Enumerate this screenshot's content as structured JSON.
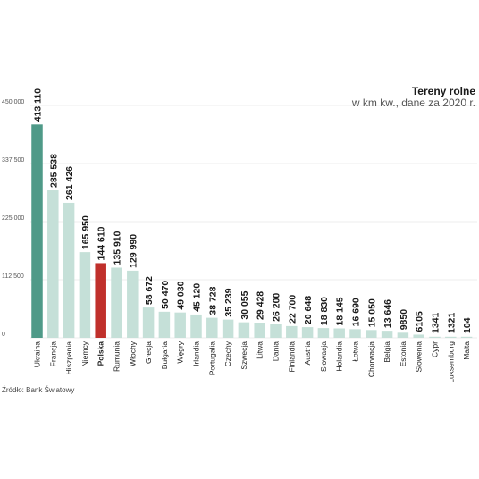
{
  "chart_data": {
    "type": "bar",
    "title": "Tereny rolne",
    "subtitle": "w km kw., dane za 2020 r.",
    "source": "Źródło: Bank Światowy",
    "ylim": [
      0,
      450000
    ],
    "yticks": [
      "450 000",
      "337 500",
      "225 000",
      "112 500",
      "0"
    ],
    "ytick_values": [
      450000,
      337500,
      225000,
      112500,
      0
    ],
    "grid": true,
    "categories": [
      "Ukraina",
      "Francja",
      "Hiszpania",
      "Niemcy",
      "Polska",
      "Rumunia",
      "Włochy",
      "Grecja",
      "Bułgaria",
      "Węgry",
      "Irlandia",
      "Portugalia",
      "Czechy",
      "Szwecja",
      "Litwa",
      "Dania",
      "Finlandia",
      "Austria",
      "Słowacja",
      "Holandia",
      "Łotwa",
      "Chorwacja",
      "Belgia",
      "Estonia",
      "Słowenia",
      "Cypr",
      "Luksemburg",
      "Malta"
    ],
    "values": [
      413110,
      285538,
      261426,
      165950,
      144610,
      135910,
      129990,
      58672,
      50470,
      49030,
      45120,
      38728,
      35239,
      30055,
      29428,
      26200,
      22700,
      20648,
      18830,
      18145,
      16690,
      15050,
      13646,
      9850,
      6105,
      1341,
      1321,
      104
    ],
    "value_labels": [
      "413 110",
      "285 538",
      "261 426",
      "165 950",
      "144 610",
      "135 910",
      "129 990",
      "58 672",
      "50 470",
      "49 030",
      "45 120",
      "38 728",
      "35 239",
      "30 055",
      "29 428",
      "26 200",
      "22 700",
      "20 648",
      "18 830",
      "18 145",
      "16 690",
      "15 050",
      "13 646",
      "9850",
      "6105",
      "1341",
      "1321",
      "104"
    ],
    "highlight": {
      "Ukraina": "#4f9a88",
      "Polska": "#c0302b"
    },
    "bar_color": "#c5e0d8",
    "highlight_bold_label": "Polska"
  }
}
